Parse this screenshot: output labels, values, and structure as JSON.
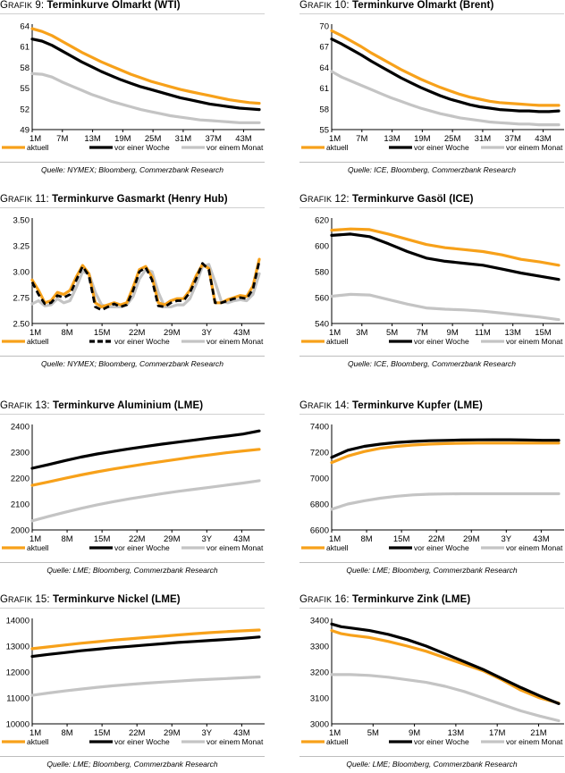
{
  "colors": {
    "aktuell": "#F7A11A",
    "woche": "#000000",
    "monat": "#C4C4C4",
    "axis": "#000000"
  },
  "legend_labels": {
    "aktuell": "aktuell",
    "woche": "vor einer Woche",
    "monat": "vor einem Monat"
  },
  "panels": [
    {
      "id": "wti",
      "grafik_prefix": "G",
      "grafik_rest": "RAFIK",
      "grafik_num": "9:",
      "title": "Terminkurve Ölmarkt (WTI)",
      "source": "Quelle: NYMEX; Bloomberg, Commerzbank Research",
      "chart_data": {
        "type": "line",
        "title": "Terminkurve Ölmarkt (WTI)",
        "ylim": [
          49,
          64
        ],
        "yticks": [
          "49",
          "52",
          "55",
          "58",
          "61",
          "64"
        ],
        "xticks": [
          "1M",
          "7M",
          "13M",
          "19M",
          "25M",
          "31M",
          "37M",
          "43M"
        ],
        "series": [
          {
            "name": "aktuell",
            "key": "aktuell",
            "values": [
              63.6,
              63.2,
              62.6,
              61.8,
              61.0,
              60.2,
              59.5,
              58.8,
              58.2,
              57.6,
              57.0,
              56.5,
              56.0,
              55.6,
              55.2,
              54.8,
              54.5,
              54.2,
              53.9,
              53.6,
              53.3,
              53.1,
              52.9,
              52.8
            ]
          },
          {
            "name": "vor einer Woche",
            "key": "woche",
            "values": [
              62.1,
              61.8,
              61.2,
              60.4,
              59.6,
              58.8,
              58.1,
              57.4,
              56.8,
              56.2,
              55.7,
              55.2,
              54.8,
              54.4,
              54.0,
              53.6,
              53.3,
              53.0,
              52.7,
              52.5,
              52.3,
              52.1,
              52.0,
              51.9
            ]
          },
          {
            "name": "vor einem Monat",
            "key": "monat",
            "values": [
              57.1,
              57.0,
              56.6,
              55.9,
              55.3,
              54.7,
              54.1,
              53.6,
              53.1,
              52.7,
              52.3,
              51.9,
              51.6,
              51.3,
              51.0,
              50.8,
              50.6,
              50.4,
              50.3,
              50.2,
              50.1,
              50.0,
              50.0,
              50.0
            ]
          }
        ]
      }
    },
    {
      "id": "brent",
      "grafik_prefix": "G",
      "grafik_rest": "RAFIK",
      "grafik_num": "10:",
      "title": "Terminkurve Ölmarkt (Brent)",
      "source": "Quelle: ICE, Bloomberg, Commerzbank Research",
      "chart_data": {
        "type": "line",
        "title": "Terminkurve Ölmarkt (Brent)",
        "ylim": [
          55,
          70
        ],
        "yticks": [
          "55",
          "58",
          "61",
          "64",
          "67",
          "70"
        ],
        "xticks": [
          "1M",
          "7M",
          "13M",
          "19M",
          "25M",
          "31M",
          "37M",
          "43M"
        ],
        "series": [
          {
            "name": "aktuell",
            "key": "aktuell",
            "values": [
              69.3,
              68.6,
              67.8,
              67.0,
              66.1,
              65.3,
              64.5,
              63.7,
              63.0,
              62.3,
              61.7,
              61.1,
              60.6,
              60.1,
              59.7,
              59.4,
              59.1,
              58.9,
              58.8,
              58.7,
              58.6,
              58.5,
              58.5,
              58.5
            ]
          },
          {
            "name": "vor einer Woche",
            "key": "woche",
            "values": [
              68.1,
              67.4,
              66.6,
              65.8,
              64.9,
              64.1,
              63.3,
              62.5,
              61.8,
              61.1,
              60.5,
              59.9,
              59.4,
              59.0,
              58.6,
              58.3,
              58.1,
              57.9,
              57.8,
              57.7,
              57.7,
              57.6,
              57.6,
              57.7
            ]
          },
          {
            "name": "vor einem Monat",
            "key": "monat",
            "values": [
              63.4,
              62.6,
              62.0,
              61.4,
              60.8,
              60.2,
              59.6,
              59.1,
              58.6,
              58.1,
              57.7,
              57.3,
              57.0,
              56.7,
              56.5,
              56.3,
              56.1,
              56.0,
              55.9,
              55.8,
              55.8,
              55.7,
              55.7,
              55.7
            ]
          }
        ]
      }
    },
    {
      "id": "henryhub",
      "grafik_prefix": "G",
      "grafik_rest": "RAFIK",
      "grafik_num": "11:",
      "title": "Terminkurve Gasmarkt (Henry Hub)",
      "source": "Quelle: NYMEX; Bloomberg, Commerzbank Research",
      "chart_data": {
        "type": "line",
        "title": "Terminkurve Gasmarkt (Henry Hub)",
        "ylim": [
          2.5,
          3.5
        ],
        "yticks": [
          "2.50",
          "2.75",
          "3.00",
          "3.25",
          "3.50"
        ],
        "xticks": [
          "1M",
          "8M",
          "15M",
          "22M",
          "29M",
          "3Y",
          "43M"
        ],
        "series": [
          {
            "name": "aktuell",
            "key": "aktuell",
            "values": [
              2.92,
              2.82,
              2.7,
              2.72,
              2.8,
              2.78,
              2.82,
              2.95,
              3.06,
              2.98,
              2.7,
              2.66,
              2.68,
              2.7,
              2.68,
              2.7,
              2.85,
              3.02,
              3.05,
              2.95,
              2.7,
              2.68,
              2.72,
              2.74,
              2.74,
              2.82,
              2.96,
              3.07,
              3.03,
              2.7,
              2.7,
              2.73,
              2.75,
              2.77,
              2.76,
              2.86,
              3.12
            ]
          },
          {
            "name": "vor einer Woche",
            "key": "woche",
            "values": [
              2.9,
              2.78,
              2.69,
              2.7,
              2.77,
              2.75,
              2.78,
              2.92,
              3.05,
              2.96,
              2.66,
              2.63,
              2.66,
              2.69,
              2.66,
              2.68,
              2.82,
              3.0,
              3.04,
              2.92,
              2.67,
              2.66,
              2.7,
              2.72,
              2.72,
              2.8,
              2.93,
              3.08,
              3.02,
              2.7,
              2.7,
              2.72,
              2.74,
              2.75,
              2.74,
              2.83,
              3.1
            ]
          },
          {
            "name": "vor einem Monat",
            "key": "monat",
            "values": [
              2.69,
              2.72,
              2.67,
              2.68,
              2.74,
              2.7,
              2.72,
              2.85,
              3.0,
              2.98,
              2.8,
              2.68,
              2.66,
              2.66,
              2.66,
              2.68,
              2.76,
              2.93,
              3.02,
              3.0,
              2.8,
              2.66,
              2.66,
              2.68,
              2.68,
              2.74,
              2.88,
              3.05,
              3.07,
              2.9,
              2.71,
              2.7,
              2.72,
              2.73,
              2.72,
              2.78,
              2.98
            ]
          }
        ]
      }
    },
    {
      "id": "gasoel",
      "grafik_prefix": "G",
      "grafik_rest": "RAFIK",
      "grafik_num": "12:",
      "title": "Terminkurve Gasöl (ICE)",
      "source": "Quelle: ICE, Bloomberg, Commerzbank Research",
      "chart_data": {
        "type": "line",
        "title": "Terminkurve Gasöl (ICE)",
        "ylim": [
          540,
          620
        ],
        "yticks": [
          "540",
          "560",
          "580",
          "600",
          "620"
        ],
        "xticks": [
          "1M",
          "3M",
          "5M",
          "7M",
          "9M",
          "11M",
          "13M",
          "15M"
        ],
        "series": [
          {
            "name": "aktuell",
            "key": "aktuell",
            "values": [
              612,
              613,
              612.5,
              609,
              605,
              601,
              598.5,
              597,
              595.5,
              593,
              589.5,
              587.5,
              585
            ]
          },
          {
            "name": "vor einer Woche",
            "key": "woche",
            "values": [
              608,
              609,
              607,
              601.5,
              595.5,
              590.5,
              588,
              586.5,
              585,
              582,
              579,
              576.5,
              574
            ]
          },
          {
            "name": "vor einem Monat",
            "key": "monat",
            "values": [
              561,
              562.5,
              562,
              558.5,
              555,
              552,
              551,
              550.5,
              549.5,
              548,
              546.5,
              545,
              543
            ]
          }
        ]
      }
    },
    {
      "id": "aluminium",
      "grafik_prefix": "G",
      "grafik_rest": "RAFIK",
      "grafik_num": "13:",
      "title": "Terminkurve Aluminium (LME)",
      "source": "Quelle: LME; Bloomberg, Commerzbank Research",
      "chart_data": {
        "type": "line",
        "title": "Terminkurve Aluminium (LME)",
        "ylim": [
          2000,
          2400
        ],
        "yticks": [
          "2000",
          "2100",
          "2200",
          "2300",
          "2400"
        ],
        "xticks": [
          "1M",
          "8M",
          "15M",
          "22M",
          "29M",
          "3Y",
          "43M"
        ],
        "series": [
          {
            "name": "aktuell",
            "key": "aktuell",
            "values": [
              2172,
              2185,
              2199,
              2212,
              2224,
              2235,
              2245,
              2255,
              2264,
              2273,
              2282,
              2290,
              2298,
              2305,
              2311
            ]
          },
          {
            "name": "vor einer Woche",
            "key": "woche",
            "values": [
              2238,
              2252,
              2267,
              2281,
              2293,
              2303,
              2313,
              2322,
              2331,
              2339,
              2347,
              2355,
              2362,
              2370,
              2382
            ]
          },
          {
            "name": "vor einem Monat",
            "key": "monat",
            "values": [
              2035,
              2052,
              2068,
              2083,
              2097,
              2109,
              2120,
              2130,
              2140,
              2149,
              2157,
              2165,
              2173,
              2181,
              2190
            ]
          }
        ]
      }
    },
    {
      "id": "kupfer",
      "grafik_prefix": "G",
      "grafik_rest": "RAFIK",
      "grafik_num": "14:",
      "title": "Terminkurve Kupfer (LME)",
      "source": "Quelle: LME; Bloomberg, Commerzbank Research",
      "chart_data": {
        "type": "line",
        "title": "Terminkurve Kupfer (LME)",
        "ylim": [
          6600,
          7400
        ],
        "yticks": [
          "6600",
          "6800",
          "7000",
          "7200",
          "7400"
        ],
        "xticks": [
          "1M",
          "8M",
          "15M",
          "22M",
          "29M",
          "3Y",
          "43M"
        ],
        "series": [
          {
            "name": "aktuell",
            "key": "aktuell",
            "values": [
              7120,
              7170,
              7205,
              7230,
              7245,
              7255,
              7262,
              7266,
              7269,
              7270,
              7270,
              7270,
              7270,
              7270,
              7270
            ]
          },
          {
            "name": "vor einer Woche",
            "key": "woche",
            "values": [
              7160,
              7215,
              7245,
              7262,
              7275,
              7283,
              7288,
              7291,
              7294,
              7295,
              7296,
              7296,
              7294,
              7292,
              7292
            ]
          },
          {
            "name": "vor einem Monat",
            "key": "monat",
            "values": [
              6760,
              6800,
              6825,
              6845,
              6860,
              6870,
              6876,
              6878,
              6879,
              6879,
              6879,
              6879,
              6879,
              6879,
              6879
            ]
          }
        ]
      }
    },
    {
      "id": "nickel",
      "grafik_prefix": "G",
      "grafik_rest": "RAFIK",
      "grafik_num": "15:",
      "title": "Terminkurve Nickel (LME)",
      "source": "Quelle: LME; Bloomberg, Commerzbank Research",
      "chart_data": {
        "type": "line",
        "title": "Terminkurve Nickel (LME)",
        "ylim": [
          10000,
          14000
        ],
        "yticks": [
          "10000",
          "11000",
          "12000",
          "13000",
          "14000"
        ],
        "xticks": [
          "1M",
          "8M",
          "15M",
          "22M",
          "29M",
          "3Y",
          "43M"
        ],
        "series": [
          {
            "name": "aktuell",
            "key": "aktuell",
            "values": [
              12900,
              12970,
              13040,
              13110,
              13170,
              13230,
              13280,
              13330,
              13380,
              13430,
              13480,
              13520,
              13560,
              13590,
              13620
            ]
          },
          {
            "name": "vor einer Woche",
            "key": "woche",
            "values": [
              12600,
              12680,
              12750,
              12820,
              12880,
              12940,
              12990,
              13040,
              13090,
              13140,
              13180,
              13220,
              13260,
              13300,
              13350
            ]
          },
          {
            "name": "vor einem Monat",
            "key": "monat",
            "values": [
              11100,
              11190,
              11270,
              11340,
              11410,
              11470,
              11520,
              11570,
              11610,
              11650,
              11690,
              11720,
              11750,
              11780,
              11810
            ]
          }
        ]
      }
    },
    {
      "id": "zink",
      "grafik_prefix": "G",
      "grafik_rest": "RAFIK",
      "grafik_num": "16:",
      "title": "Terminkurve Zink (LME)",
      "source": "Quelle: LME; Bloomberg, Commerzbank Research",
      "chart_data": {
        "type": "line",
        "title": "Terminkurve Zink (LME)",
        "ylim": [
          3000,
          3400
        ],
        "yticks": [
          "3000",
          "3100",
          "3200",
          "3300",
          "3400"
        ],
        "xticks": [
          "1M",
          "5M",
          "9M",
          "13M",
          "17M",
          "21M"
        ],
        "series": [
          {
            "name": "aktuell",
            "key": "aktuell",
            "x": [
              1,
              2,
              3,
              5,
              7,
              9,
              11,
              13,
              15,
              17,
              19,
              21,
              23,
              25
            ],
            "values": [
              3360,
              3348,
              3342,
              3333,
              3318,
              3300,
              3280,
              3255,
              3230,
              3205,
              3170,
              3130,
              3100,
              3080
            ]
          },
          {
            "name": "vor einer Woche",
            "key": "woche",
            "x": [
              1,
              2,
              3,
              5,
              7,
              9,
              11,
              13,
              15,
              17,
              19,
              21,
              23,
              25
            ],
            "values": [
              3385,
              3375,
              3370,
              3360,
              3345,
              3325,
              3300,
              3270,
              3240,
              3210,
              3175,
              3140,
              3108,
              3078
            ]
          },
          {
            "name": "vor einem Monat",
            "key": "monat",
            "x": [
              1,
              2,
              3,
              5,
              7,
              9,
              11,
              13,
              15,
              17,
              19,
              21,
              23,
              25
            ],
            "values": [
              3190,
              3190,
              3190,
              3187,
              3180,
              3170,
              3160,
              3145,
              3125,
              3100,
              3075,
              3050,
              3030,
              3012
            ]
          }
        ],
        "xlim": [
          1,
          25
        ]
      }
    }
  ]
}
